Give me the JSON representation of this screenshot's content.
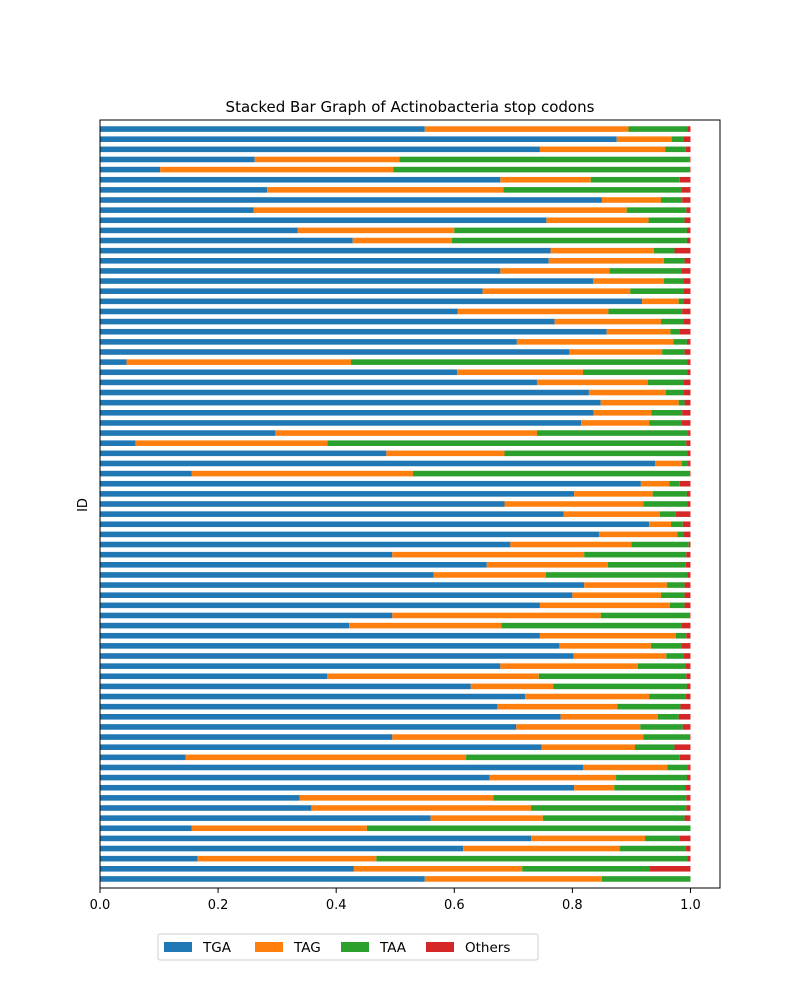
{
  "chart_data": {
    "type": "bar",
    "orientation": "horizontal",
    "stacked": true,
    "title": "Stacked Bar Graph of Actinobacteria stop codons",
    "xlabel": "",
    "ylabel": "ID",
    "xlim": [
      0,
      1.05
    ],
    "xticks": [
      0.0,
      0.2,
      0.4,
      0.6,
      0.8,
      1.0
    ],
    "xtick_labels": [
      "0.0",
      "0.2",
      "0.4",
      "0.6",
      "0.8",
      "1.0"
    ],
    "ytick_labels_shown": false,
    "grid": false,
    "legend_position": "bottom-left",
    "legend_columns": 4,
    "series_colors": [
      "#1f77b4",
      "#ff7f0e",
      "#2ca02c",
      "#d62728"
    ],
    "series": [
      {
        "name": "TGA",
        "values": [
          0.55,
          0.43,
          0.165,
          0.615,
          0.73,
          0.155,
          0.56,
          0.358,
          0.338,
          0.803,
          0.66,
          0.818,
          0.145,
          0.748,
          0.495,
          0.705,
          0.78,
          0.673,
          0.72,
          0.628,
          0.385,
          0.678,
          0.802,
          0.778,
          0.745,
          0.422,
          0.495,
          0.745,
          0.8,
          0.82,
          0.565,
          0.655,
          0.495,
          0.695,
          0.845,
          0.93,
          0.785,
          0.685,
          0.803,
          0.916,
          0.155,
          0.94,
          0.485,
          0.06,
          0.297,
          0.815,
          0.836,
          0.848,
          0.828,
          0.74,
          0.605,
          0.045,
          0.795,
          0.706,
          0.858,
          0.77,
          0.606,
          0.918,
          0.648,
          0.835,
          0.678,
          0.76,
          0.763,
          0.428,
          0.335,
          0.756,
          0.26,
          0.85,
          0.283,
          0.678,
          0.102,
          0.262,
          0.745,
          0.875,
          0.55
        ]
      },
      {
        "name": "TAG",
        "values": [
          0.3,
          0.285,
          0.303,
          0.265,
          0.193,
          0.297,
          0.19,
          0.372,
          0.328,
          0.068,
          0.214,
          0.143,
          0.475,
          0.158,
          0.425,
          0.21,
          0.165,
          0.203,
          0.21,
          0.14,
          0.358,
          0.233,
          0.157,
          0.155,
          0.23,
          0.258,
          0.353,
          0.22,
          0.15,
          0.14,
          0.19,
          0.205,
          0.325,
          0.205,
          0.133,
          0.037,
          0.163,
          0.235,
          0.133,
          0.048,
          0.375,
          0.045,
          0.2,
          0.325,
          0.443,
          0.115,
          0.098,
          0.132,
          0.13,
          0.188,
          0.213,
          0.38,
          0.157,
          0.265,
          0.108,
          0.18,
          0.255,
          0.062,
          0.25,
          0.12,
          0.185,
          0.195,
          0.175,
          0.168,
          0.265,
          0.173,
          0.632,
          0.1,
          0.4,
          0.153,
          0.395,
          0.245,
          0.212,
          0.093,
          0.345
        ]
      },
      {
        "name": "TAA",
        "values": [
          0.15,
          0.215,
          0.527,
          0.112,
          0.058,
          0.548,
          0.24,
          0.263,
          0.327,
          0.12,
          0.12,
          0.035,
          0.362,
          0.067,
          0.078,
          0.072,
          0.035,
          0.107,
          0.062,
          0.226,
          0.25,
          0.08,
          0.03,
          0.052,
          0.018,
          0.305,
          0.15,
          0.025,
          0.04,
          0.03,
          0.24,
          0.132,
          0.173,
          0.097,
          0.01,
          0.02,
          0.027,
          0.075,
          0.058,
          0.018,
          0.468,
          0.011,
          0.31,
          0.608,
          0.256,
          0.055,
          0.052,
          0.01,
          0.03,
          0.06,
          0.177,
          0.57,
          0.038,
          0.023,
          0.015,
          0.038,
          0.125,
          0.008,
          0.09,
          0.033,
          0.122,
          0.035,
          0.035,
          0.398,
          0.394,
          0.061,
          0.101,
          0.036,
          0.302,
          0.151,
          0.502,
          0.492,
          0.035,
          0.02,
          0.1
        ]
      },
      {
        "name": "Others",
        "values": [
          0.0,
          0.07,
          0.005,
          0.008,
          0.019,
          0.0,
          0.01,
          0.007,
          0.007,
          0.009,
          0.006,
          0.004,
          0.018,
          0.027,
          0.002,
          0.013,
          0.02,
          0.017,
          0.008,
          0.006,
          0.007,
          0.009,
          0.011,
          0.015,
          0.007,
          0.015,
          0.002,
          0.01,
          0.01,
          0.01,
          0.005,
          0.008,
          0.007,
          0.003,
          0.012,
          0.013,
          0.025,
          0.005,
          0.006,
          0.018,
          0.002,
          0.004,
          0.005,
          0.007,
          0.004,
          0.015,
          0.014,
          0.01,
          0.012,
          0.012,
          0.005,
          0.005,
          0.01,
          0.006,
          0.019,
          0.012,
          0.014,
          0.012,
          0.012,
          0.012,
          0.015,
          0.01,
          0.027,
          0.006,
          0.006,
          0.01,
          0.007,
          0.014,
          0.015,
          0.018,
          0.001,
          0.001,
          0.008,
          0.012,
          0.005
        ]
      }
    ]
  }
}
